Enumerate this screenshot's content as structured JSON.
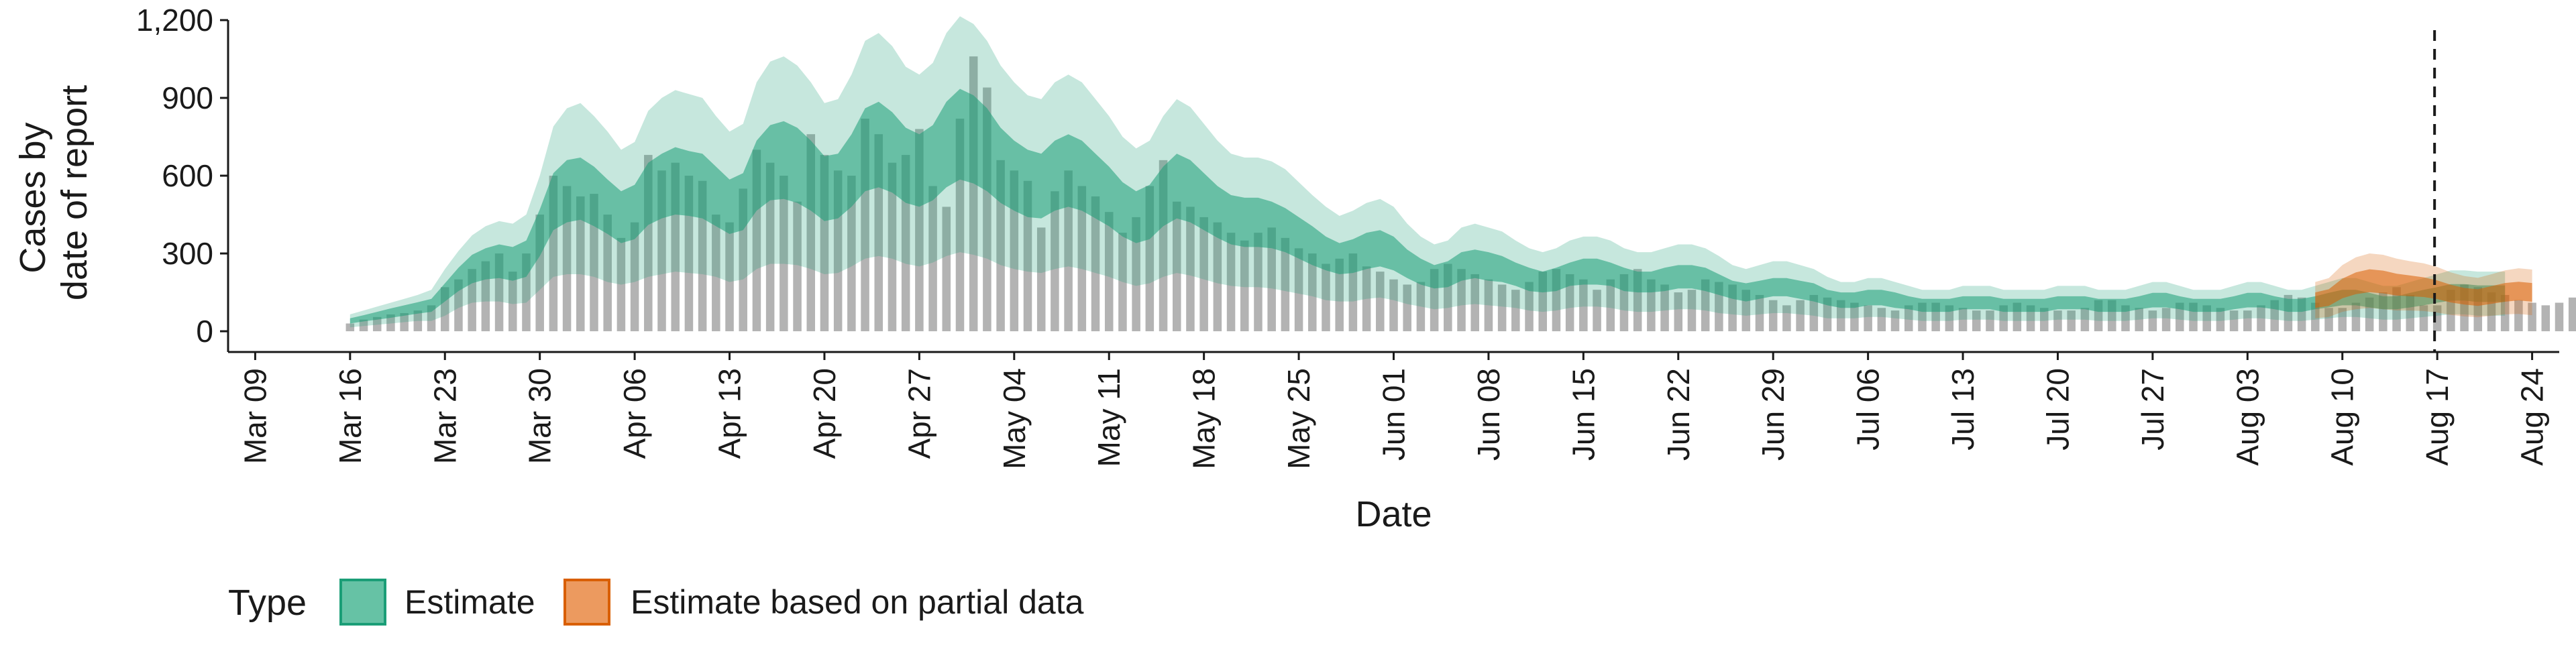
{
  "chart_data": {
    "type": "bar",
    "title": "",
    "xlabel": "Date",
    "ylabel_lines": [
      "Cases by",
      "date of report"
    ],
    "ylim": [
      -80,
      1200
    ],
    "y_ticks": [
      0,
      300,
      600,
      900,
      1200
    ],
    "y_tick_labels": [
      "0",
      "300",
      "600",
      "900",
      "1,200"
    ],
    "x_ticks": [
      "2020-03-09",
      "2020-03-16",
      "2020-03-23",
      "2020-03-30",
      "2020-04-06",
      "2020-04-13",
      "2020-04-20",
      "2020-04-27",
      "2020-05-04",
      "2020-05-11",
      "2020-05-18",
      "2020-05-25",
      "2020-06-01",
      "2020-06-08",
      "2020-06-15",
      "2020-06-22",
      "2020-06-29",
      "2020-07-06",
      "2020-07-13",
      "2020-07-20",
      "2020-07-27",
      "2020-08-03",
      "2020-08-10",
      "2020-08-17",
      "2020-08-24"
    ],
    "x_tick_labels": [
      "Mar 09",
      "Mar 16",
      "Mar 23",
      "Mar 30",
      "Apr 06",
      "Apr 13",
      "Apr 20",
      "Apr 27",
      "May 04",
      "May 11",
      "May 18",
      "May 25",
      "Jun 01",
      "Jun 08",
      "Jun 15",
      "Jun 22",
      "Jun 29",
      "Jul 06",
      "Jul 13",
      "Jul 20",
      "Jul 27",
      "Aug 03",
      "Aug 10",
      "Aug 17",
      "Aug 24"
    ],
    "xlim": [
      "2020-03-07",
      "2020-08-26"
    ],
    "vline_date": "2020-08-17",
    "grid": false,
    "legend": {
      "title": "Type",
      "placement": "bottom",
      "entries": [
        {
          "label": "Estimate",
          "fill": "#66c2a5",
          "stroke": "#1b9e77"
        },
        {
          "label": "Estimate based on partial data",
          "fill": "#ec9a5f",
          "stroke": "#d95f02"
        }
      ]
    },
    "colors": {
      "bar": "#b3b3b3",
      "estimate": "#1b9e77",
      "partial": "#d95f02",
      "vline": "#1a1a1a"
    },
    "bars": {
      "start_date": "2020-03-16",
      "values": [
        30,
        45,
        55,
        65,
        70,
        80,
        100,
        170,
        200,
        240,
        270,
        300,
        230,
        300,
        450,
        600,
        560,
        520,
        530,
        450,
        360,
        420,
        680,
        620,
        650,
        600,
        580,
        450,
        420,
        550,
        700,
        650,
        600,
        500,
        760,
        680,
        620,
        600,
        820,
        760,
        650,
        680,
        780,
        560,
        480,
        820,
        1060,
        940,
        660,
        620,
        580,
        400,
        540,
        620,
        560,
        520,
        460,
        380,
        440,
        560,
        660,
        500,
        480,
        440,
        420,
        380,
        350,
        380,
        400,
        360,
        320,
        300,
        260,
        280,
        300,
        250,
        230,
        200,
        180,
        190,
        240,
        260,
        240,
        220,
        200,
        180,
        160,
        190,
        230,
        240,
        220,
        200,
        160,
        200,
        220,
        240,
        200,
        180,
        150,
        160,
        200,
        190,
        180,
        160,
        140,
        120,
        100,
        120,
        140,
        130,
        120,
        110,
        100,
        90,
        80,
        100,
        110,
        110,
        100,
        90,
        80,
        80,
        100,
        110,
        100,
        90,
        80,
        80,
        90,
        120,
        120,
        100,
        90,
        80,
        90,
        110,
        110,
        100,
        90,
        80,
        80,
        100,
        120,
        140,
        130,
        110,
        90,
        90,
        110,
        130,
        150,
        170,
        140,
        100,
        100,
        160,
        180,
        170,
        150,
        140,
        120,
        110,
        100,
        110,
        130
      ]
    },
    "estimate_band": {
      "start_date": "2020-03-16",
      "median": [
        40,
        50,
        60,
        70,
        80,
        90,
        100,
        150,
        200,
        240,
        260,
        270,
        260,
        280,
        380,
        500,
        540,
        550,
        520,
        480,
        440,
        460,
        530,
        560,
        580,
        570,
        560,
        520,
        480,
        500,
        600,
        650,
        660,
        640,
        600,
        550,
        560,
        620,
        700,
        720,
        690,
        640,
        620,
        650,
        720,
        760,
        740,
        700,
        640,
        600,
        570,
        560,
        600,
        620,
        600,
        560,
        520,
        470,
        440,
        460,
        520,
        560,
        540,
        500,
        460,
        430,
        420,
        420,
        410,
        390,
        360,
        330,
        300,
        280,
        290,
        310,
        320,
        300,
        260,
        230,
        210,
        220,
        250,
        260,
        250,
        240,
        220,
        200,
        190,
        200,
        220,
        230,
        230,
        220,
        200,
        190,
        190,
        200,
        210,
        210,
        200,
        180,
        160,
        150,
        160,
        170,
        170,
        160,
        150,
        130,
        120,
        120,
        130,
        130,
        120,
        110,
        100,
        100,
        100,
        110,
        110,
        110,
        100,
        100,
        100,
        100,
        110,
        110,
        110,
        100,
        100,
        100,
        110,
        120,
        120,
        110,
        100,
        100,
        100,
        110,
        120,
        120,
        110,
        100,
        100,
        110,
        120,
        130,
        130,
        120,
        110,
        110,
        120,
        130,
        140,
        150,
        150,
        145,
        145,
        145
      ],
      "inner_width": [
        10,
        12,
        15,
        18,
        20,
        22,
        25,
        35,
        45,
        55,
        60,
        65,
        65,
        70,
        90,
        110,
        120,
        120,
        115,
        105,
        100,
        105,
        120,
        125,
        130,
        125,
        125,
        115,
        105,
        110,
        135,
        145,
        150,
        145,
        135,
        125,
        125,
        140,
        160,
        165,
        155,
        145,
        140,
        145,
        165,
        175,
        170,
        160,
        145,
        135,
        130,
        125,
        135,
        140,
        135,
        125,
        115,
        105,
        100,
        105,
        115,
        125,
        120,
        110,
        100,
        95,
        95,
        95,
        90,
        85,
        80,
        75,
        65,
        60,
        65,
        70,
        70,
        65,
        55,
        50,
        45,
        50,
        55,
        55,
        55,
        50,
        45,
        45,
        40,
        45,
        45,
        50,
        50,
        45,
        45,
        40,
        40,
        45,
        45,
        45,
        45,
        40,
        35,
        35,
        35,
        35,
        35,
        35,
        35,
        30,
        30,
        30,
        30,
        30,
        30,
        25,
        25,
        25,
        25,
        25,
        25,
        25,
        25,
        25,
        25,
        25,
        25,
        25,
        25,
        25,
        25,
        25,
        25,
        28,
        28,
        25,
        25,
        25,
        25,
        25,
        28,
        28,
        25,
        25,
        25,
        25,
        28,
        30,
        30,
        28,
        25,
        25,
        28,
        30,
        30,
        32,
        32,
        32,
        32,
        32
      ],
      "outer_width": [
        25,
        30,
        35,
        40,
        45,
        50,
        60,
        90,
        110,
        130,
        145,
        155,
        155,
        170,
        220,
        290,
        320,
        330,
        310,
        290,
        260,
        270,
        320,
        340,
        350,
        345,
        340,
        310,
        290,
        300,
        360,
        390,
        400,
        385,
        360,
        330,
        335,
        370,
        420,
        430,
        410,
        380,
        370,
        385,
        430,
        455,
        445,
        420,
        385,
        360,
        340,
        335,
        360,
        370,
        360,
        335,
        310,
        280,
        265,
        275,
        310,
        335,
        325,
        300,
        275,
        255,
        250,
        250,
        245,
        235,
        215,
        195,
        180,
        165,
        175,
        185,
        190,
        180,
        155,
        135,
        125,
        130,
        150,
        155,
        150,
        145,
        130,
        120,
        115,
        120,
        130,
        135,
        135,
        130,
        120,
        115,
        115,
        120,
        125,
        125,
        120,
        110,
        95,
        90,
        95,
        100,
        100,
        95,
        90,
        80,
        70,
        70,
        75,
        75,
        70,
        65,
        60,
        60,
        60,
        65,
        65,
        65,
        60,
        60,
        60,
        60,
        65,
        65,
        65,
        60,
        60,
        60,
        65,
        70,
        70,
        65,
        60,
        60,
        60,
        65,
        70,
        70,
        65,
        60,
        60,
        65,
        70,
        75,
        75,
        70,
        65,
        65,
        70,
        75,
        80,
        85,
        85,
        85,
        85,
        85
      ]
    },
    "partial_band": {
      "start_date": "2020-08-08",
      "median": [
        120,
        130,
        165,
        185,
        195,
        190,
        180,
        175,
        170,
        160,
        145,
        135,
        130,
        140,
        150,
        155,
        150
      ],
      "inner_width": [
        30,
        32,
        38,
        42,
        44,
        44,
        42,
        40,
        38,
        36,
        34,
        32,
        32,
        34,
        36,
        36,
        36
      ],
      "outer_width": [
        70,
        75,
        90,
        100,
        105,
        105,
        100,
        95,
        92,
        88,
        82,
        78,
        76,
        80,
        85,
        88,
        88
      ]
    }
  }
}
